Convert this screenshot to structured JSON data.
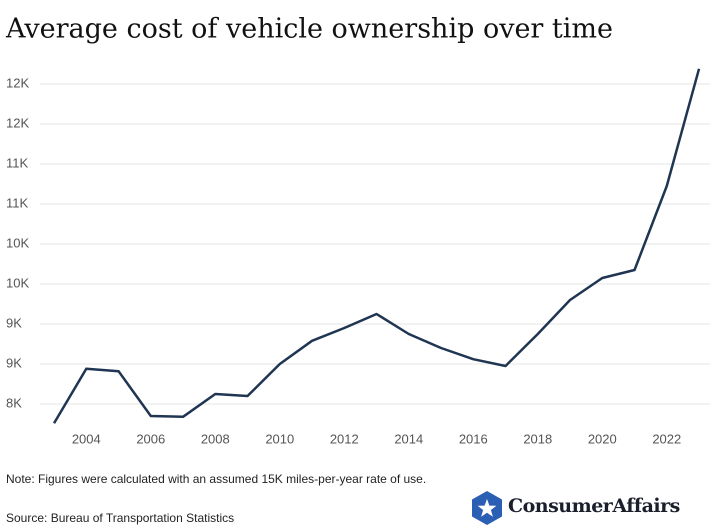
{
  "chart_data": {
    "type": "line",
    "title": "Average cost of vehicle ownership over time",
    "x": [
      2003,
      2004,
      2005,
      2006,
      2007,
      2008,
      2009,
      2010,
      2011,
      2012,
      2013,
      2014,
      2015,
      2016,
      2017,
      2018,
      2019,
      2020,
      2021,
      2022,
      2023
    ],
    "values": [
      7760,
      8440,
      8410,
      7850,
      7840,
      8125,
      8100,
      8500,
      8790,
      8950,
      9125,
      8875,
      8700,
      8560,
      8475,
      8875,
      9300,
      9575,
      9675,
      10725,
      12190
    ],
    "color": "#1f3552",
    "xlim": [
      2002.8,
      2023.3
    ],
    "xticks": [
      2004,
      2006,
      2008,
      2010,
      2012,
      2014,
      2016,
      2018,
      2020,
      2022
    ],
    "ylim": [
      7700,
      12300
    ],
    "yticks": [
      {
        "value": 8000,
        "label": "8K"
      },
      {
        "value": 8500,
        "label": "9K"
      },
      {
        "value": 9000,
        "label": "9K"
      },
      {
        "value": 9500,
        "label": "10K"
      },
      {
        "value": 10000,
        "label": "10K"
      },
      {
        "value": 10500,
        "label": "11K"
      },
      {
        "value": 11000,
        "label": "11K"
      },
      {
        "value": 11500,
        "label": "12K"
      },
      {
        "value": 12000,
        "label": "12K"
      }
    ],
    "grid": true,
    "note": "Note: Figures were calculated with an assumed 15K miles-per-year rate of use.",
    "source": "Source: Bureau of Transportation Statistics"
  },
  "brand": "ConsumerAffairs"
}
